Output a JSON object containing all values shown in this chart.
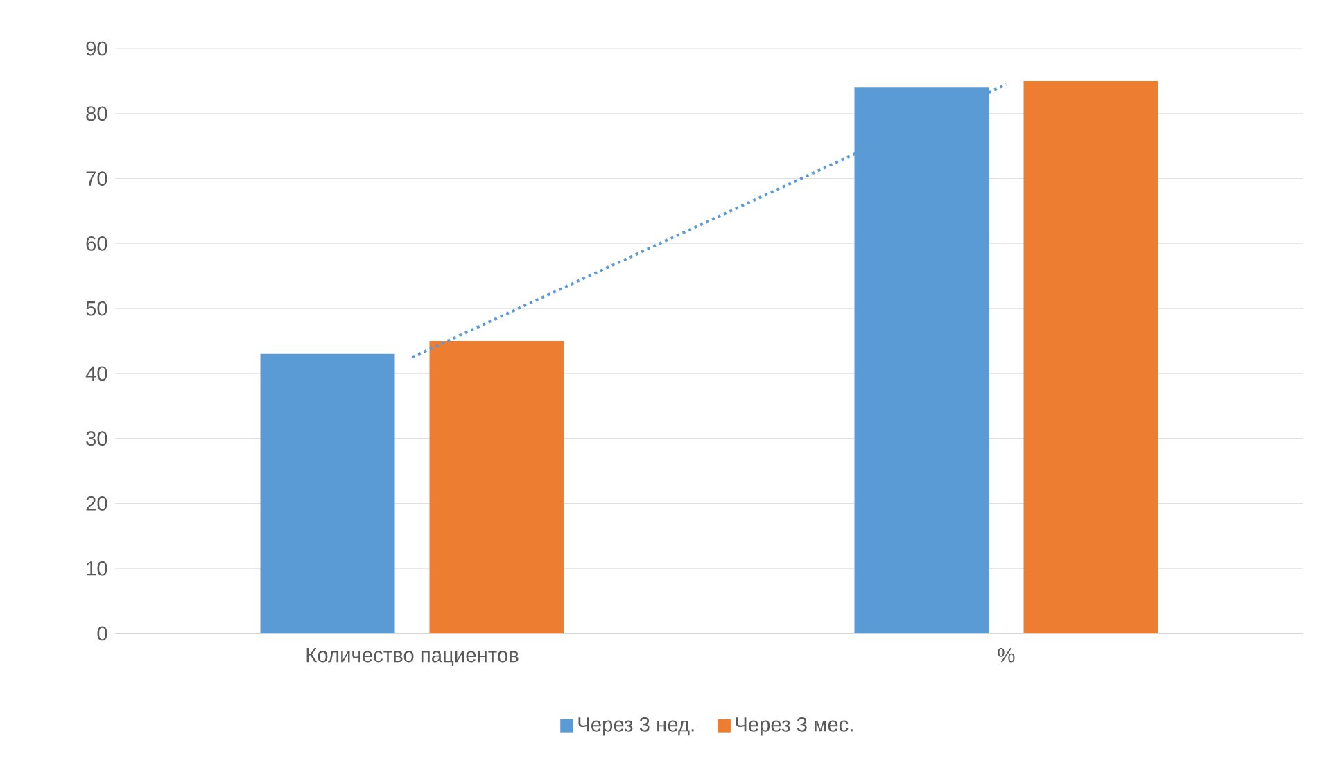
{
  "chart_data": {
    "type": "bar",
    "categories": [
      "Количество пациентов",
      "%"
    ],
    "series": [
      {
        "name": "Через 3 нед.",
        "color": "#5b9bd5",
        "values": [
          43,
          84
        ]
      },
      {
        "name": "Через 3 мес.",
        "color": "#ed7d31",
        "values": [
          45,
          85
        ]
      },
      {
        "type": "line",
        "color": "#5b9bd5",
        "line_style": "dotted",
        "values": [
          42.5,
          84.5
        ]
      }
    ],
    "ylim": [
      0,
      90
    ],
    "yticks": [
      0,
      10,
      20,
      30,
      40,
      50,
      60,
      70,
      80,
      90
    ],
    "grid": "y",
    "legend": "bottom"
  }
}
